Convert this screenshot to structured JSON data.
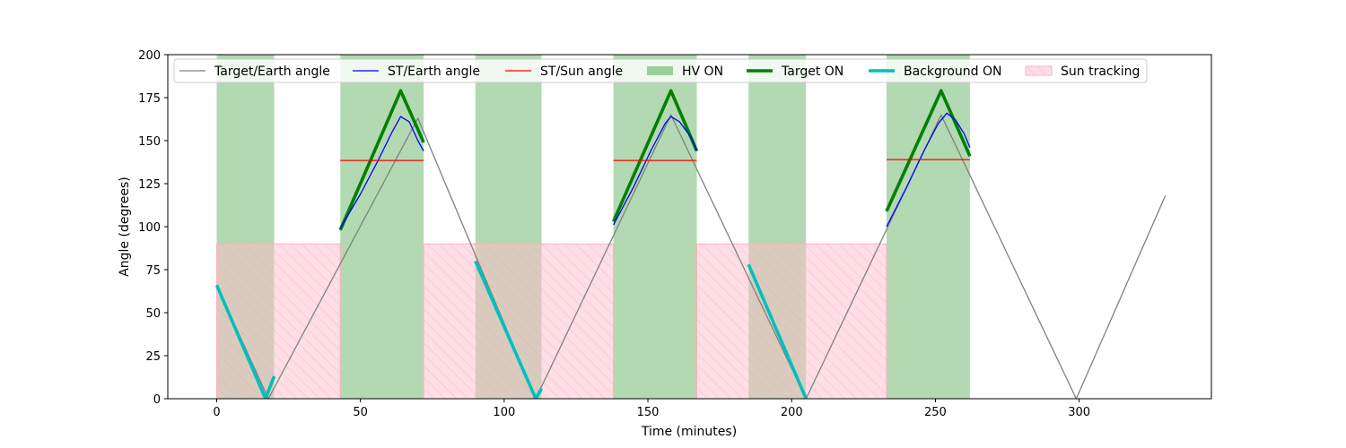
{
  "chart_data": {
    "type": "line",
    "xlabel": "Time (minutes)",
    "ylabel": "Angle (degrees)",
    "xlim": [
      -17,
      346
    ],
    "ylim": [
      0,
      200
    ],
    "xticks": [
      0,
      50,
      100,
      150,
      200,
      250,
      300
    ],
    "yticks": [
      0,
      25,
      50,
      75,
      100,
      125,
      150,
      175,
      200
    ],
    "grid": false,
    "legend_position": "top, single row",
    "colors": {
      "target_earth": "#808080",
      "st_earth": "#0000ff",
      "st_sun": "#ff0000",
      "hv_on": "#008000",
      "target_on": "#008000",
      "background_on": "#00bfbf",
      "sun_tracking": "#ffc0cb"
    },
    "series": [
      {
        "name": "Target/Earth angle",
        "style": "line",
        "points": [
          [
            0,
            66
          ],
          [
            18,
            0
          ],
          [
            70,
            163
          ],
          [
            111,
            0
          ],
          [
            158,
            165
          ],
          [
            205,
            0
          ],
          [
            252,
            165
          ],
          [
            299,
            0
          ],
          [
            330,
            118
          ]
        ]
      },
      {
        "name": "ST/Earth angle",
        "style": "line",
        "segments": [
          [
            [
              43,
              99
            ],
            [
              50,
              119
            ],
            [
              56,
              138
            ],
            [
              61,
              155
            ],
            [
              64,
              164
            ],
            [
              67,
              161
            ],
            [
              70,
              150
            ],
            [
              72,
              144
            ]
          ],
          [
            [
              138,
              101
            ],
            [
              145,
              123
            ],
            [
              151,
              144
            ],
            [
              156,
              160
            ],
            [
              158,
              164
            ],
            [
              161,
              161
            ],
            [
              165,
              152
            ],
            [
              167,
              144
            ]
          ],
          [
            [
              233,
              100
            ],
            [
              240,
              123
            ],
            [
              246,
              144
            ],
            [
              251,
              160
            ],
            [
              254,
              166
            ],
            [
              257,
              162
            ],
            [
              260,
              154
            ],
            [
              262,
              146
            ]
          ]
        ]
      },
      {
        "name": "ST/Sun angle",
        "style": "line",
        "segments": [
          [
            [
              43,
              138.5
            ],
            [
              72,
              138.5
            ]
          ],
          [
            [
              138,
              138.5
            ],
            [
              167,
              138.5
            ]
          ],
          [
            [
              233,
              139
            ],
            [
              262,
              139
            ]
          ]
        ]
      },
      {
        "name": "HV ON",
        "style": "band",
        "intervals": [
          [
            0,
            20
          ],
          [
            43,
            72
          ],
          [
            90,
            113
          ],
          [
            138,
            167
          ],
          [
            185,
            205
          ],
          [
            233,
            262
          ]
        ]
      },
      {
        "name": "Target ON",
        "style": "thick-line",
        "segments": [
          [
            [
              43,
              98
            ],
            [
              64,
              179
            ],
            [
              72,
              149
            ]
          ],
          [
            [
              138,
              103
            ],
            [
              158,
              179
            ],
            [
              167,
              144
            ]
          ],
          [
            [
              233,
              109
            ],
            [
              252,
              179
            ],
            [
              262,
              141
            ]
          ]
        ]
      },
      {
        "name": "Background ON",
        "style": "thick-line",
        "segments": [
          [
            [
              0,
              66
            ],
            [
              17,
              0
            ],
            [
              20,
              13
            ]
          ],
          [
            [
              90,
              80
            ],
            [
              111,
              0
            ],
            [
              113,
              6
            ]
          ],
          [
            [
              185,
              78
            ],
            [
              205,
              0
            ]
          ]
        ]
      },
      {
        "name": "Sun tracking",
        "style": "hatched-band",
        "yrange": [
          0,
          90
        ],
        "intervals": [
          [
            0,
            43
          ],
          [
            72,
            138
          ],
          [
            167,
            233
          ]
        ]
      }
    ]
  }
}
